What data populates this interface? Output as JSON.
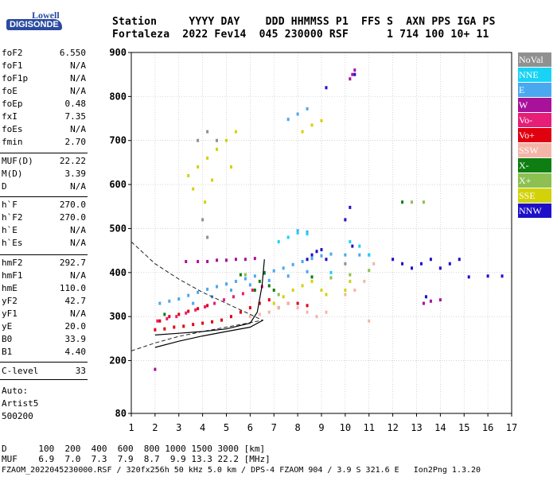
{
  "logo": {
    "line1": "Lowell",
    "line2": "DIGISONDE"
  },
  "header": {
    "line1": "Station     YYYY DAY    DDD HHMMSS P1  FFS S  AXN PPS IGA PS",
    "line2": "Fortaleza  2022 Fev14  045 230000 RSF      1 714 100 10+ 11"
  },
  "params_group1": [
    {
      "name": "foF2",
      "value": "6.550"
    },
    {
      "name": "foF1",
      "value": "N/A"
    },
    {
      "name": "foF1p",
      "value": "N/A"
    },
    {
      "name": "foE",
      "value": "N/A"
    },
    {
      "name": "foEp",
      "value": "0.48"
    },
    {
      "name": "fxI",
      "value": "7.35"
    },
    {
      "name": "foEs",
      "value": "N/A"
    },
    {
      "name": "fmin",
      "value": "2.70"
    }
  ],
  "params_group2": [
    {
      "name": "MUF(D)",
      "value": "22.22"
    },
    {
      "name": "M(D)",
      "value": "3.39"
    },
    {
      "name": "D",
      "value": "N/A"
    }
  ],
  "params_group3": [
    {
      "name": "h`F",
      "value": "270.0"
    },
    {
      "name": "h`F2",
      "value": "270.0"
    },
    {
      "name": "h`E",
      "value": "N/A"
    },
    {
      "name": "h`Es",
      "value": "N/A"
    }
  ],
  "params_group4": [
    {
      "name": "hmF2",
      "value": "292.7"
    },
    {
      "name": "hmF1",
      "value": "N/A"
    },
    {
      "name": "hmE",
      "value": "110.0"
    },
    {
      "name": "yF2",
      "value": "42.7"
    },
    {
      "name": "yF1",
      "value": "N/A"
    },
    {
      "name": "yE",
      "value": "20.0"
    },
    {
      "name": "B0",
      "value": "33.9"
    },
    {
      "name": "B1",
      "value": "4.40"
    }
  ],
  "params_group5": [
    {
      "name": "C-level",
      "value": "33"
    }
  ],
  "auto": {
    "line1": "Auto:",
    "line2": "Artist5",
    "line3": "500200"
  },
  "legend": [
    {
      "label": "NoVal",
      "color": "#909090"
    },
    {
      "label": "NNE",
      "color": "#19d3f5"
    },
    {
      "label": "E",
      "color": "#4aa8f0"
    },
    {
      "label": "W",
      "color": "#a8129a"
    },
    {
      "label": "Vo-",
      "color": "#e61e78"
    },
    {
      "label": "Vo+",
      "color": "#e00010"
    },
    {
      "label": "SSW",
      "color": "#f4b4a8"
    },
    {
      "label": "X-",
      "color": "#0e7e12"
    },
    {
      "label": "X+",
      "color": "#8cc050"
    },
    {
      "label": "SSE",
      "color": "#d2d20a"
    },
    {
      "label": "NNW",
      "color": "#1e10c8"
    }
  ],
  "footer": {
    "line1": "D      100  200  400  600  800 1000 1500 3000 [km]",
    "line2": "MUF    6.9  7.0  7.3  7.9  8.7  9.9 13.3 22.2 [MHz]",
    "line3": "FZAOM_2022045230000.RSF / 320fx256h 50 kHz 5.0 km / DPS-4 FZAOM 904 / 3.9 S 321.6 E   Ion2Png 1.3.20"
  },
  "chart_data": {
    "type": "scatter",
    "xlim": [
      1,
      17
    ],
    "ylim": [
      80,
      900
    ],
    "x_ticks": [
      1,
      2,
      3,
      4,
      5,
      6,
      7,
      8,
      9,
      10,
      11,
      12,
      13,
      14,
      15,
      16,
      17
    ],
    "y_ticks": [
      80,
      200,
      300,
      400,
      500,
      600,
      700,
      800,
      900
    ],
    "grid": true,
    "legend_position": "right",
    "profile_curve": [
      [
        2.0,
        230
      ],
      [
        3.0,
        244
      ],
      [
        4.0,
        256
      ],
      [
        5.0,
        266
      ],
      [
        6.0,
        276
      ],
      [
        6.55,
        292
      ]
    ],
    "trace_curve": [
      [
        2.0,
        258
      ],
      [
        3.0,
        262
      ],
      [
        4.0,
        266
      ],
      [
        5.0,
        272
      ],
      [
        6.0,
        285
      ],
      [
        6.3,
        310
      ],
      [
        6.5,
        370
      ],
      [
        6.6,
        430
      ]
    ],
    "dashed_top": [
      [
        1.0,
        470
      ],
      [
        2.0,
        420
      ],
      [
        3.0,
        385
      ],
      [
        4.0,
        355
      ],
      [
        5.0,
        330
      ],
      [
        6.0,
        305
      ],
      [
        6.5,
        292
      ]
    ],
    "dashed_bottom": [
      [
        1.0,
        222
      ],
      [
        2.0,
        240
      ],
      [
        3.0,
        255
      ],
      [
        4.0,
        266
      ],
      [
        5.0,
        276
      ],
      [
        6.0,
        286
      ],
      [
        6.55,
        292
      ]
    ],
    "series": [
      {
        "name": "E",
        "color": "#4aa8f0",
        "points": [
          [
            2.2,
            330
          ],
          [
            2.6,
            335
          ],
          [
            3.0,
            340
          ],
          [
            3.4,
            348
          ],
          [
            3.8,
            355
          ],
          [
            4.2,
            362
          ],
          [
            4.6,
            368
          ],
          [
            5.0,
            374
          ],
          [
            5.4,
            380
          ],
          [
            5.8,
            386
          ],
          [
            6.2,
            392
          ],
          [
            6.6,
            398
          ],
          [
            7.0,
            404
          ],
          [
            7.4,
            410
          ],
          [
            7.8,
            418
          ],
          [
            8.2,
            425
          ],
          [
            8.6,
            432
          ],
          [
            9.0,
            438
          ],
          [
            9.4,
            442
          ],
          [
            10.0,
            440
          ],
          [
            10.6,
            440
          ],
          [
            11.0,
            440
          ],
          [
            3.6,
            330
          ],
          [
            4.4,
            345
          ],
          [
            5.2,
            360
          ],
          [
            6.0,
            372
          ],
          [
            6.8,
            382
          ],
          [
            7.6,
            392
          ],
          [
            8.4,
            402
          ],
          [
            8.0,
            495
          ],
          [
            8.4,
            492
          ],
          [
            7.6,
            748
          ],
          [
            8.0,
            760
          ],
          [
            8.4,
            772
          ]
        ]
      },
      {
        "name": "NNW",
        "color": "#1e10c8",
        "points": [
          [
            8.4,
            430
          ],
          [
            8.6,
            440
          ],
          [
            8.8,
            448
          ],
          [
            9.0,
            452
          ],
          [
            9.2,
            430
          ],
          [
            10.0,
            520
          ],
          [
            10.2,
            548
          ],
          [
            10.3,
            460
          ],
          [
            12.0,
            430
          ],
          [
            12.4,
            420
          ],
          [
            12.8,
            410
          ],
          [
            13.2,
            420
          ],
          [
            13.6,
            430
          ],
          [
            14.0,
            410
          ],
          [
            14.4,
            420
          ],
          [
            14.8,
            430
          ],
          [
            13.4,
            345
          ],
          [
            9.2,
            820
          ],
          [
            10.4,
            850
          ],
          [
            15.2,
            390
          ],
          [
            16.0,
            392
          ],
          [
            16.6,
            392
          ]
        ]
      },
      {
        "name": "W",
        "color": "#a8129a",
        "points": [
          [
            3.3,
            425
          ],
          [
            3.8,
            425
          ],
          [
            4.2,
            425
          ],
          [
            4.6,
            428
          ],
          [
            5.0,
            428
          ],
          [
            5.4,
            430
          ],
          [
            5.8,
            430
          ],
          [
            6.2,
            432
          ],
          [
            10.2,
            840
          ],
          [
            10.3,
            850
          ],
          [
            10.4,
            860
          ],
          [
            13.3,
            330
          ],
          [
            13.6,
            335
          ],
          [
            14.0,
            338
          ],
          [
            2.0,
            180
          ]
        ]
      },
      {
        "name": "Vo+",
        "color": "#e00010",
        "points": [
          [
            2.0,
            270
          ],
          [
            2.4,
            272
          ],
          [
            2.8,
            276
          ],
          [
            3.2,
            278
          ],
          [
            3.6,
            282
          ],
          [
            4.0,
            285
          ],
          [
            4.4,
            288
          ],
          [
            4.8,
            292
          ],
          [
            5.2,
            300
          ],
          [
            5.6,
            310
          ],
          [
            6.0,
            320
          ],
          [
            6.4,
            330
          ],
          [
            6.8,
            338
          ],
          [
            2.2,
            290
          ],
          [
            2.6,
            300
          ],
          [
            3.0,
            305
          ],
          [
            3.4,
            312
          ],
          [
            3.8,
            318
          ],
          [
            4.2,
            325
          ],
          [
            7.2,
            320
          ],
          [
            7.6,
            330
          ],
          [
            8.0,
            330
          ],
          [
            8.4,
            325
          ]
        ]
      },
      {
        "name": "Vo-",
        "color": "#e61e78",
        "points": [
          [
            2.1,
            290
          ],
          [
            2.5,
            295
          ],
          [
            2.9,
            300
          ],
          [
            3.3,
            308
          ],
          [
            3.7,
            315
          ],
          [
            4.1,
            322
          ],
          [
            4.5,
            330
          ],
          [
            4.9,
            338
          ],
          [
            5.3,
            345
          ],
          [
            5.7,
            352
          ],
          [
            6.1,
            360
          ],
          [
            6.5,
            368
          ]
        ]
      },
      {
        "name": "SSW",
        "color": "#f4b4a8",
        "points": [
          [
            6.0,
            300
          ],
          [
            6.4,
            305
          ],
          [
            6.8,
            310
          ],
          [
            7.2,
            320
          ],
          [
            7.6,
            330
          ],
          [
            8.0,
            320
          ],
          [
            8.4,
            310
          ],
          [
            8.8,
            300
          ],
          [
            9.2,
            310
          ],
          [
            10.0,
            350
          ],
          [
            10.4,
            360
          ],
          [
            10.8,
            380
          ],
          [
            11.2,
            420
          ],
          [
            11.0,
            290
          ]
        ]
      },
      {
        "name": "SSE",
        "color": "#d2d20a",
        "points": [
          [
            7.0,
            330
          ],
          [
            7.4,
            345
          ],
          [
            7.8,
            360
          ],
          [
            8.2,
            370
          ],
          [
            8.6,
            380
          ],
          [
            9.0,
            360
          ],
          [
            9.2,
            350
          ],
          [
            10.0,
            360
          ],
          [
            10.2,
            380
          ],
          [
            3.4,
            620
          ],
          [
            3.8,
            640
          ],
          [
            4.2,
            660
          ],
          [
            4.6,
            680
          ],
          [
            5.0,
            700
          ],
          [
            5.4,
            720
          ],
          [
            3.6,
            590
          ],
          [
            4.4,
            610
          ],
          [
            5.2,
            640
          ],
          [
            4.1,
            560
          ],
          [
            8.2,
            720
          ],
          [
            8.6,
            735
          ],
          [
            9.0,
            745
          ]
        ]
      },
      {
        "name": "X-",
        "color": "#0e7e12",
        "points": [
          [
            6.2,
            360
          ],
          [
            6.4,
            380
          ],
          [
            6.6,
            400
          ],
          [
            6.8,
            370
          ],
          [
            7.0,
            360
          ],
          [
            8.6,
            390
          ],
          [
            5.6,
            395
          ],
          [
            12.4,
            560
          ],
          [
            2.4,
            305
          ]
        ]
      },
      {
        "name": "X+",
        "color": "#8cc050",
        "points": [
          [
            9.4,
            388
          ],
          [
            10.2,
            395
          ],
          [
            11.0,
            405
          ],
          [
            12.8,
            560
          ],
          [
            13.3,
            560
          ],
          [
            7.2,
            350
          ],
          [
            5.8,
            395
          ]
        ]
      },
      {
        "name": "NNE",
        "color": "#19d3f5",
        "points": [
          [
            7.2,
            470
          ],
          [
            7.6,
            480
          ],
          [
            8.0,
            490
          ],
          [
            8.4,
            488
          ],
          [
            10.2,
            470
          ],
          [
            10.6,
            460
          ],
          [
            11.0,
            440
          ],
          [
            9.4,
            400
          ]
        ]
      },
      {
        "name": "NoVal",
        "color": "#909090",
        "points": [
          [
            3.8,
            700
          ],
          [
            4.2,
            720
          ],
          [
            4.6,
            700
          ],
          [
            10.0,
            420
          ],
          [
            4.0,
            520
          ],
          [
            4.2,
            480
          ]
        ]
      }
    ]
  }
}
